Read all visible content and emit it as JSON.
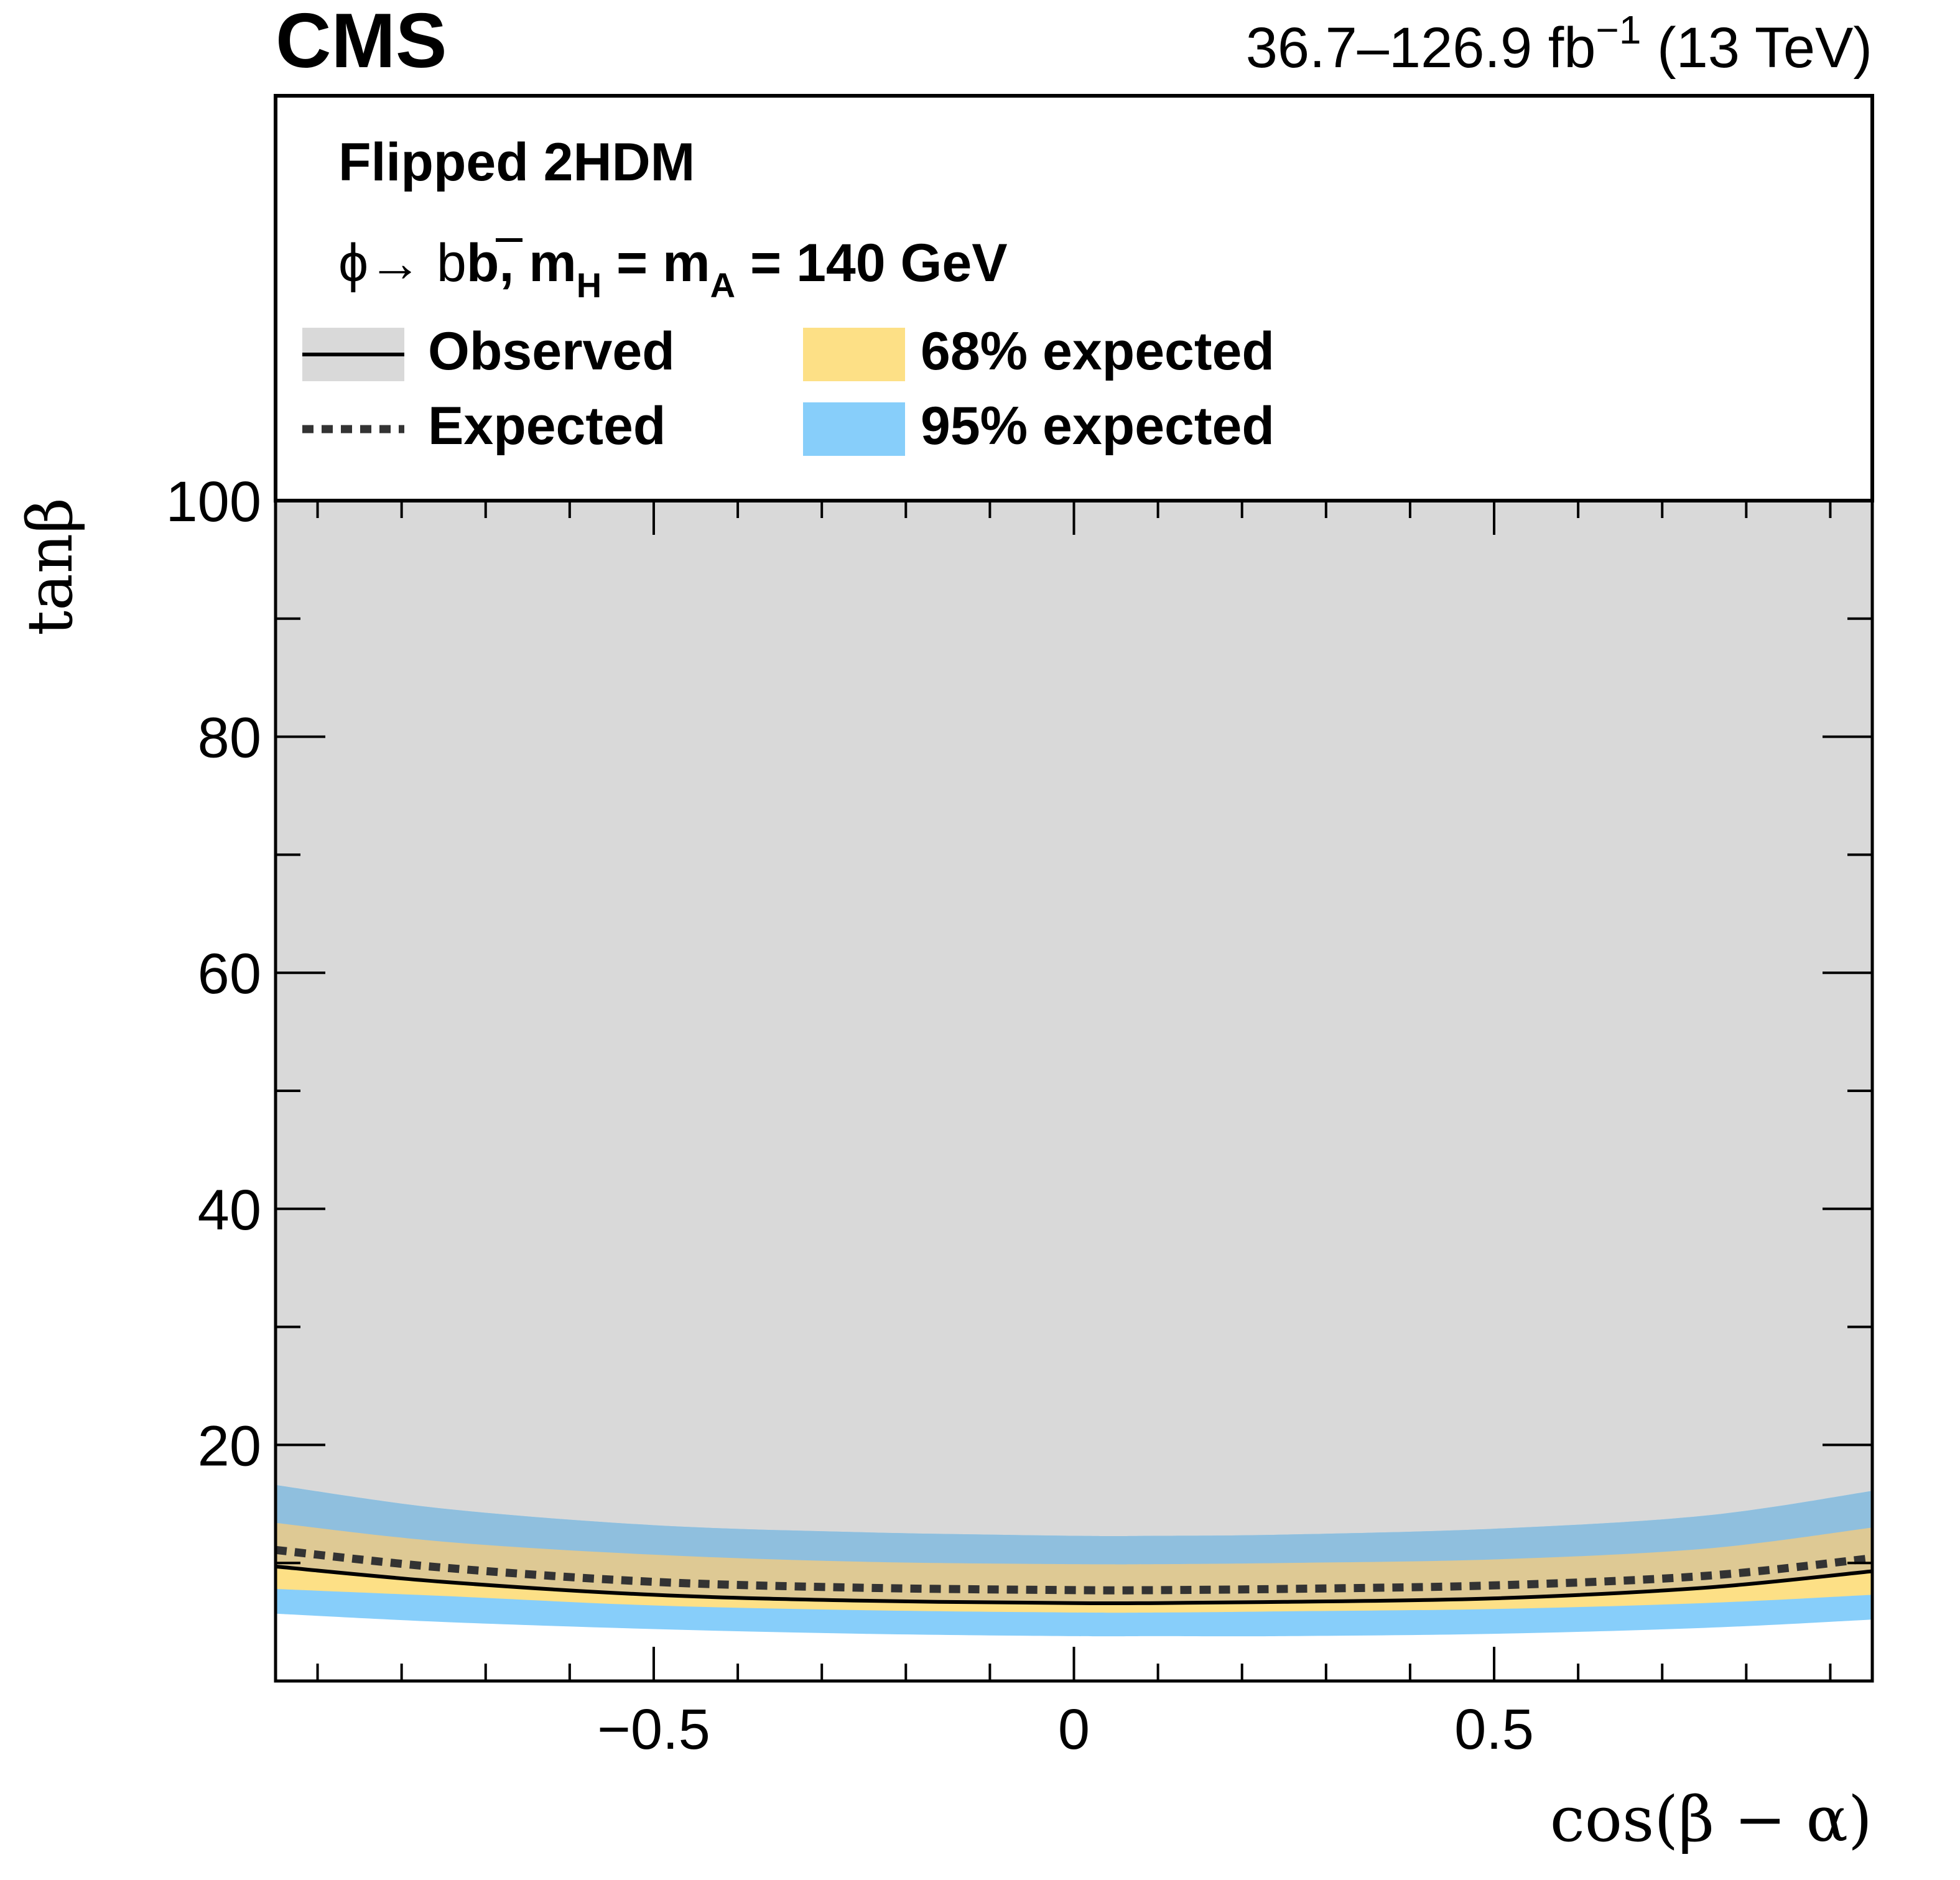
{
  "header": {
    "experiment": "CMS",
    "lumi_prefix": "36.7–126.9 fb",
    "lumi_exp": "−1",
    "lumi_suffix": " (13 TeV)"
  },
  "legend": {
    "model": "Flipped 2HDM",
    "process_phi": "ϕ→ b",
    "process_bbar": "b",
    "process_comma": ", m",
    "process_sub_h": "H",
    "process_eq": " = m",
    "process_sub_a": "A",
    "process_mass": " = 140 GeV",
    "entries": [
      {
        "label": "Observed"
      },
      {
        "label": "Expected"
      },
      {
        "label": "68% expected"
      },
      {
        "label": "95% expected"
      }
    ]
  },
  "colors": {
    "excluded": "#d9d9d9",
    "band68": "#fde086",
    "band95": "#87cefa",
    "overlap68": "#dec994",
    "overlap95": "#8fbfde",
    "observed": "#000000",
    "expected": "#333333"
  },
  "chart_data": {
    "type": "line",
    "title": "Flipped 2HDM, ϕ→bb̄, mH = mA = 140 GeV",
    "xlabel": "cos(β − α)",
    "ylabel": "tanβ",
    "xlim": [
      -0.95,
      0.95
    ],
    "ylim": [
      0,
      100
    ],
    "x_ticks": [
      "−0.5",
      "0",
      "0.5"
    ],
    "x_tick_values": [
      -0.5,
      0,
      0.5
    ],
    "y_ticks": [
      "20",
      "40",
      "60",
      "80",
      "100"
    ],
    "y_tick_values": [
      20,
      40,
      60,
      80,
      100
    ],
    "x": [
      -0.95,
      -0.75,
      -0.5,
      -0.25,
      0.0,
      0.1,
      0.25,
      0.5,
      0.75,
      0.95
    ],
    "series": [
      {
        "name": "Observed",
        "style": "solid",
        "values": [
          9.7,
          8.4,
          7.3,
          6.8,
          6.6,
          6.6,
          6.7,
          7.0,
          7.9,
          9.3
        ]
      },
      {
        "name": "Expected",
        "style": "dotted",
        "values": [
          11.1,
          9.6,
          8.4,
          7.9,
          7.7,
          7.7,
          7.8,
          8.1,
          8.9,
          10.4
        ]
      },
      {
        "name": "68% expected",
        "style": "band",
        "low": [
          7.8,
          7.2,
          6.4,
          6.0,
          5.8,
          5.8,
          5.9,
          6.1,
          6.6,
          7.3
        ],
        "high": [
          13.4,
          11.8,
          10.7,
          10.1,
          9.9,
          9.9,
          10.0,
          10.3,
          11.2,
          13.0
        ]
      },
      {
        "name": "95% expected",
        "style": "band",
        "low": [
          5.7,
          5.0,
          4.4,
          4.0,
          3.8,
          3.8,
          3.8,
          4.0,
          4.5,
          5.2
        ],
        "high": [
          16.6,
          14.6,
          13.2,
          12.6,
          12.3,
          12.3,
          12.4,
          12.9,
          14.0,
          16.1
        ]
      },
      {
        "name": "Excluded region",
        "style": "fill",
        "note": "region above observed limit"
      }
    ]
  }
}
